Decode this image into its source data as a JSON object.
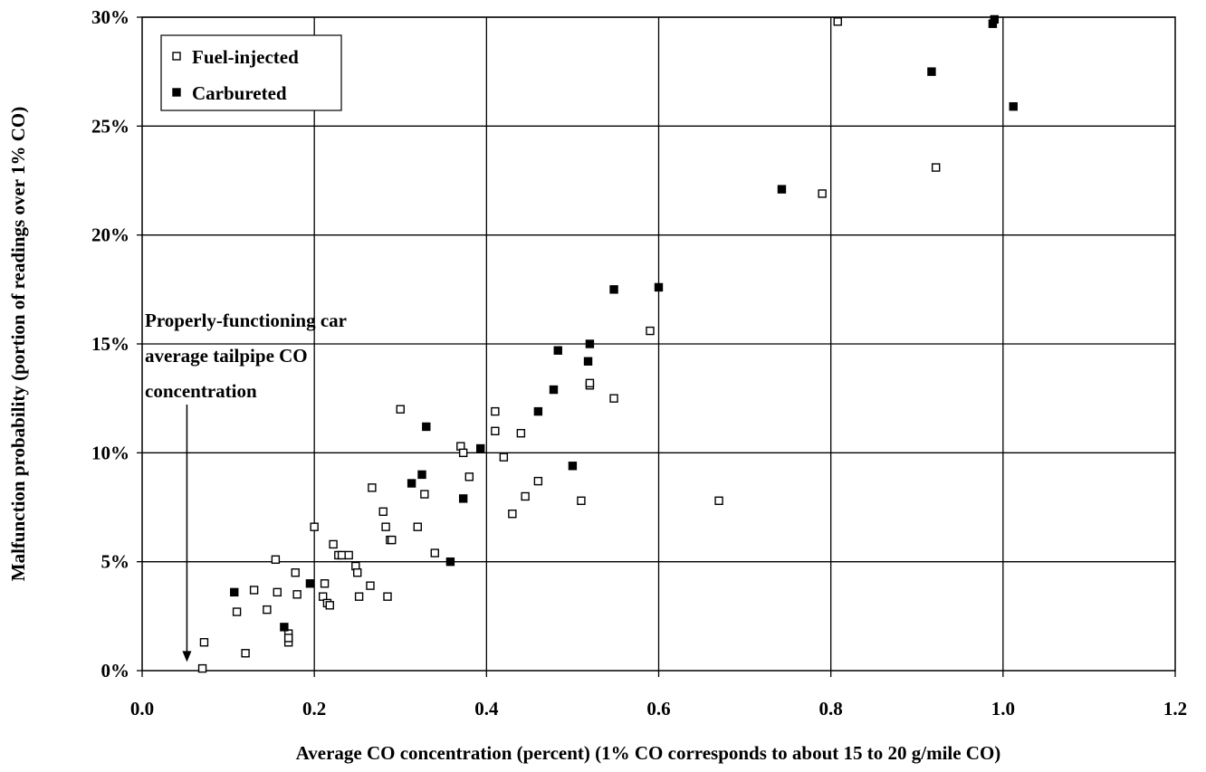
{
  "chart_data": {
    "type": "scatter",
    "title": "",
    "xlabel": "Average CO concentration (percent) (1% CO corresponds to about 15 to 20 g/mile CO)",
    "ylabel": "Malfunction probability (portion of readings over 1% CO)",
    "xlim": [
      0,
      1.2
    ],
    "ylim": [
      0,
      30
    ],
    "x_ticks": [
      "0.0",
      "0.2",
      "0.4",
      "0.6",
      "0.8",
      "1.0",
      "1.2"
    ],
    "y_ticks": [
      "0%",
      "5%",
      "10%",
      "15%",
      "20%",
      "25%",
      "30%"
    ],
    "grid": true,
    "legend_position": "top-left",
    "annotation": {
      "lines": [
        "Properly-functioning car",
        "average tailpipe CO",
        "concentration"
      ],
      "x": 0.052,
      "y": 0.4
    },
    "series": [
      {
        "name": "Fuel-injected",
        "marker": "open-square",
        "color": "#000000",
        "x": [
          0.07,
          0.072,
          0.11,
          0.12,
          0.13,
          0.145,
          0.155,
          0.157,
          0.17,
          0.17,
          0.17,
          0.178,
          0.18,
          0.2,
          0.21,
          0.212,
          0.215,
          0.218,
          0.222,
          0.228,
          0.232,
          0.24,
          0.248,
          0.25,
          0.252,
          0.265,
          0.267,
          0.28,
          0.283,
          0.285,
          0.288,
          0.29,
          0.3,
          0.32,
          0.328,
          0.34,
          0.37,
          0.373,
          0.38,
          0.41,
          0.41,
          0.42,
          0.43,
          0.44,
          0.445,
          0.46,
          0.51,
          0.52,
          0.52,
          0.548,
          0.59,
          0.67,
          0.79,
          0.808,
          0.922
        ],
        "y": [
          0.1,
          1.3,
          2.7,
          0.8,
          3.7,
          2.8,
          5.1,
          3.6,
          1.7,
          1.3,
          1.5,
          4.5,
          3.5,
          6.6,
          3.4,
          4.0,
          3.1,
          3.0,
          5.8,
          5.3,
          5.3,
          5.3,
          4.8,
          4.5,
          3.4,
          3.9,
          8.4,
          7.3,
          6.6,
          3.4,
          6.0,
          6.0,
          12.0,
          6.6,
          8.1,
          5.4,
          10.3,
          10.0,
          8.9,
          11.9,
          11.0,
          9.8,
          7.2,
          10.9,
          8.0,
          8.7,
          7.8,
          13.1,
          13.2,
          12.5,
          15.6,
          7.8,
          21.9,
          29.8,
          23.1
        ]
      },
      {
        "name": "Carbureted",
        "marker": "filled-square",
        "color": "#000000",
        "x": [
          0.107,
          0.165,
          0.195,
          0.313,
          0.325,
          0.33,
          0.358,
          0.373,
          0.393,
          0.46,
          0.478,
          0.483,
          0.5,
          0.518,
          0.52,
          0.548,
          0.6,
          0.743,
          0.917,
          0.988,
          0.99,
          1.012
        ],
        "y": [
          3.6,
          2.0,
          4.0,
          8.6,
          9.0,
          11.2,
          5.0,
          7.9,
          10.2,
          11.9,
          12.9,
          14.7,
          9.4,
          14.2,
          15.0,
          17.5,
          17.6,
          22.1,
          27.5,
          29.7,
          29.9,
          25.9
        ]
      }
    ]
  }
}
